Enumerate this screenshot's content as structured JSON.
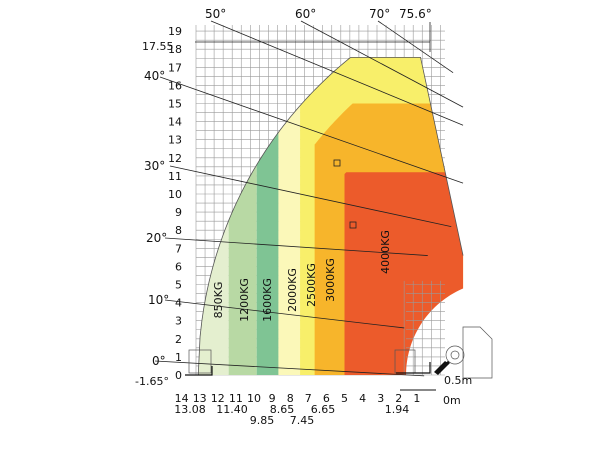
{
  "chart_data": {
    "type": "load_chart",
    "y_axis": {
      "ticks": [
        "19",
        "18",
        "17",
        "16",
        "15",
        "14",
        "13",
        "12",
        "11",
        "10",
        "9",
        "8",
        "7",
        "6",
        "5",
        "4",
        "3",
        "2",
        "1",
        "0"
      ],
      "extra_labels": [
        "17.55",
        "-1.65°"
      ],
      "range": [
        -1.65,
        19
      ]
    },
    "x_axis": {
      "ticks": [
        "14",
        "13",
        "12",
        "11",
        "10",
        "9",
        "8",
        "7",
        "6",
        "5",
        "4",
        "3",
        "2",
        "1"
      ],
      "secondary_ticks": [
        "13.08",
        "11.40",
        "9.85",
        "8.65",
        "7.45",
        "6.65",
        "1.94"
      ],
      "zero_label": "0m",
      "offset_label": "0.5m",
      "range": [
        0,
        14.5
      ]
    },
    "boom_angles": [
      {
        "label": "0°",
        "value": 0
      },
      {
        "label": "10°",
        "value": 10
      },
      {
        "label": "20°",
        "value": 20
      },
      {
        "label": "30°",
        "value": 30
      },
      {
        "label": "40°",
        "value": 40
      },
      {
        "label": "50°",
        "value": 50
      },
      {
        "label": "60°",
        "value": 60
      },
      {
        "label": "70°",
        "value": 70
      },
      {
        "label": "75.6°",
        "value": 75.6
      }
    ],
    "load_zones": [
      {
        "label": "850KG",
        "max_reach_m": 13.08,
        "color": "#e4efcf"
      },
      {
        "label": "1200KG",
        "max_reach_m": 11.4,
        "color": "#b8d9a4"
      },
      {
        "label": "1600KG",
        "max_reach_m": 9.85,
        "color": "#7fc494"
      },
      {
        "label": "2000KG",
        "max_reach_m": 8.65,
        "color": "#fbf8b9"
      },
      {
        "label": "2500KG",
        "max_reach_m": 7.45,
        "color": "#f8ef6a"
      },
      {
        "label": "3000KG",
        "max_reach_m": 6.65,
        "color": "#f7b52b"
      },
      {
        "label": "4000KG",
        "max_reach_m": 4.9,
        "color": "#ec5b2b"
      }
    ]
  }
}
